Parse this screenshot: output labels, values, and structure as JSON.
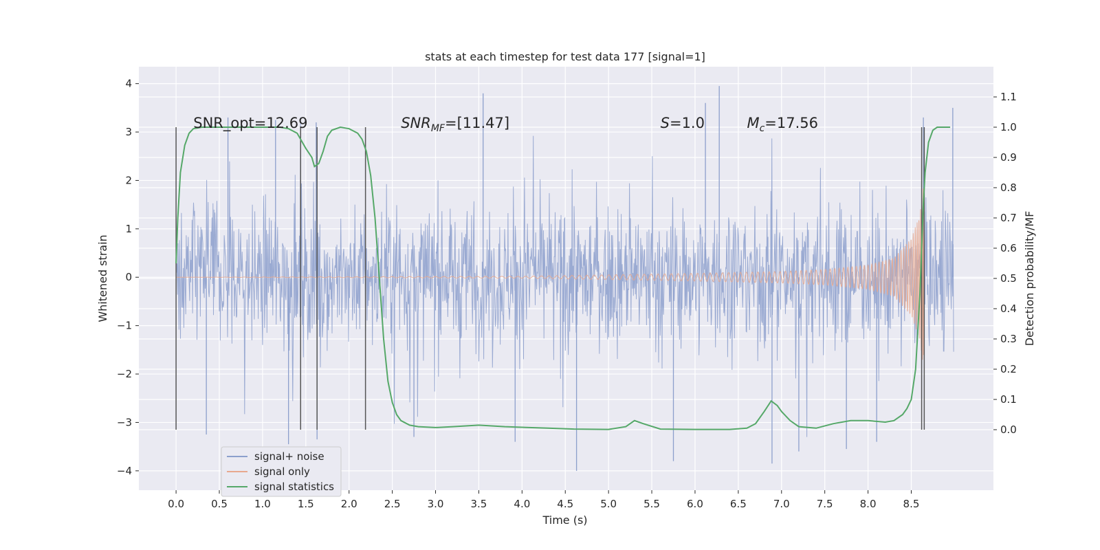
{
  "chart_data": {
    "type": "line",
    "title": "stats at each timestep for test data 177 [signal=1]",
    "xlabel": "Time (s)",
    "ylabel_left": "Whitened strain",
    "ylabel_right": "Detection probability/MF",
    "xlim": [
      -0.43,
      9.45
    ],
    "ylim_left": [
      -4.4,
      4.35
    ],
    "ylim_right": [
      -0.2,
      1.2
    ],
    "x_ticks": [
      "0.0",
      "0.5",
      "1.0",
      "1.5",
      "2.0",
      "2.5",
      "3.0",
      "3.5",
      "4.0",
      "4.5",
      "5.0",
      "5.5",
      "6.0",
      "6.5",
      "7.0",
      "7.5",
      "8.0",
      "8.5"
    ],
    "x_tick_values": [
      0,
      0.5,
      1,
      1.5,
      2,
      2.5,
      3,
      3.5,
      4,
      4.5,
      5,
      5.5,
      6,
      6.5,
      7,
      7.5,
      8,
      8.5
    ],
    "y_left_ticks": [
      "−4",
      "−3",
      "−2",
      "−1",
      "0",
      "1",
      "2",
      "3",
      "4"
    ],
    "y_left_tick_values": [
      -4,
      -3,
      -2,
      -1,
      0,
      1,
      2,
      3,
      4
    ],
    "y_right_ticks": [
      "0.0",
      "0.1",
      "0.2",
      "0.3",
      "0.4",
      "0.5",
      "0.6",
      "0.7",
      "0.8",
      "0.9",
      "1.0",
      "1.1"
    ],
    "y_right_tick_values": [
      0,
      0.1,
      0.2,
      0.3,
      0.4,
      0.5,
      0.6,
      0.7,
      0.8,
      0.9,
      1.0,
      1.1
    ],
    "grid": true,
    "legend_position": "lower-left",
    "annotations": [
      {
        "text": "SNR_opt=12.69",
        "x": 0.2,
        "y_right": 1.0
      },
      {
        "text": "SNR_MF=[11.47]",
        "x": 2.6,
        "y_right": 1.0
      },
      {
        "text": "S=1.0",
        "x": 5.6,
        "y_right": 1.0
      },
      {
        "text": "M_c=17.56",
        "x": 6.6,
        "y_right": 1.0
      }
    ],
    "vertical_lines_x": [
      0.0,
      1.44,
      1.63,
      2.19,
      8.62,
      8.65
    ],
    "vertical_lines_y_range": [
      -3.15,
      3.1
    ],
    "series": [
      {
        "name": "signal+ noise",
        "axis": "left",
        "color": "#8c9fcc",
        "time_range": [
          0.0,
          8.99
        ],
        "typical_amplitude": 1.0,
        "peak_values": [
          [
            0.6,
            3.3
          ],
          [
            1.15,
            3.25
          ],
          [
            1.62,
            3.2
          ],
          [
            3.55,
            3.8
          ],
          [
            6.28,
            3.95
          ],
          [
            6.12,
            3.6
          ],
          [
            8.64,
            3.3
          ],
          [
            8.98,
            3.5
          ],
          [
            4.63,
            -4.0
          ],
          [
            1.3,
            -3.45
          ],
          [
            1.63,
            -3.35
          ],
          [
            2.75,
            -3.3
          ],
          [
            3.92,
            -3.4
          ],
          [
            5.75,
            -3.8
          ],
          [
            6.89,
            -3.85
          ],
          [
            7.2,
            -3.6
          ],
          [
            7.75,
            -3.55
          ],
          [
            8.1,
            -3.4
          ],
          [
            0.35,
            -3.25
          ],
          [
            8.62,
            -2.5
          ]
        ]
      },
      {
        "name": "signal only",
        "axis": "left",
        "color": "#e8a88e",
        "time_range": [
          0.0,
          8.65
        ],
        "amplitude_envelope": [
          [
            0.0,
            0.0
          ],
          [
            4.0,
            0.02
          ],
          [
            5.0,
            0.05
          ],
          [
            6.0,
            0.08
          ],
          [
            7.0,
            0.12
          ],
          [
            7.5,
            0.16
          ],
          [
            8.0,
            0.25
          ],
          [
            8.3,
            0.4
          ],
          [
            8.5,
            0.8
          ],
          [
            8.6,
            1.3
          ],
          [
            8.64,
            2.0
          ],
          [
            8.66,
            0.0
          ]
        ]
      },
      {
        "name": "signal statistics",
        "axis": "right",
        "color": "#55a868",
        "x": [
          0.0,
          0.02,
          0.05,
          0.1,
          0.15,
          0.2,
          0.3,
          0.5,
          0.8,
          1.0,
          1.2,
          1.3,
          1.4,
          1.5,
          1.57,
          1.6,
          1.65,
          1.7,
          1.75,
          1.8,
          1.9,
          2.0,
          2.1,
          2.15,
          2.2,
          2.25,
          2.3,
          2.35,
          2.4,
          2.45,
          2.5,
          2.55,
          2.6,
          2.7,
          2.8,
          3.0,
          3.2,
          3.5,
          3.8,
          4.0,
          4.3,
          4.6,
          5.0,
          5.2,
          5.3,
          5.4,
          5.6,
          6.0,
          6.4,
          6.6,
          6.7,
          6.8,
          6.88,
          6.95,
          7.0,
          7.1,
          7.2,
          7.4,
          7.6,
          7.8,
          8.0,
          8.2,
          8.3,
          8.4,
          8.45,
          8.5,
          8.55,
          8.6,
          8.62,
          8.64,
          8.66,
          8.7,
          8.75,
          8.8,
          8.85,
          8.9,
          8.95
        ],
        "values": [
          0.55,
          0.7,
          0.85,
          0.94,
          0.98,
          0.995,
          1.0,
          1.0,
          1.0,
          1.0,
          1.0,
          0.995,
          0.98,
          0.93,
          0.9,
          0.87,
          0.88,
          0.92,
          0.97,
          0.99,
          1.0,
          0.995,
          0.98,
          0.96,
          0.92,
          0.84,
          0.7,
          0.5,
          0.3,
          0.16,
          0.09,
          0.05,
          0.03,
          0.015,
          0.01,
          0.007,
          0.01,
          0.015,
          0.01,
          0.008,
          0.005,
          0.002,
          0.001,
          0.01,
          0.03,
          0.02,
          0.002,
          0.001,
          0.001,
          0.005,
          0.02,
          0.06,
          0.095,
          0.08,
          0.06,
          0.03,
          0.01,
          0.005,
          0.02,
          0.03,
          0.03,
          0.025,
          0.03,
          0.05,
          0.07,
          0.1,
          0.2,
          0.45,
          0.6,
          0.75,
          0.85,
          0.95,
          0.99,
          1.0,
          1.0,
          1.0,
          1.0
        ]
      }
    ]
  }
}
